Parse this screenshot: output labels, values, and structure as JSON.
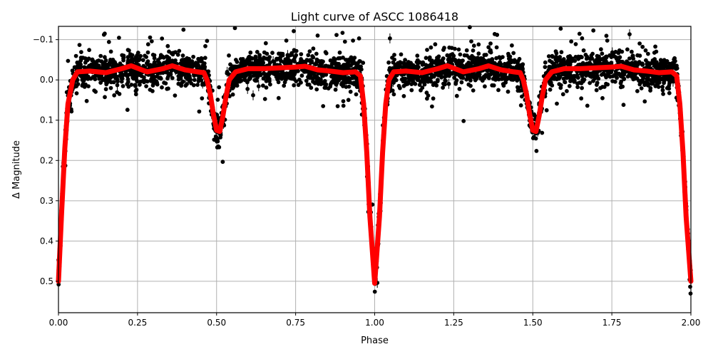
{
  "chart_data": {
    "type": "scatter",
    "title": "Light curve of ASCC 1086418",
    "xlabel": "Phase",
    "ylabel": "Δ Magnitude",
    "xlim": [
      0.0,
      2.0
    ],
    "ylim": [
      0.578,
      -0.133
    ],
    "y_inverted": true,
    "grid": true,
    "legend": null,
    "x_ticks": [
      "0.00",
      "0.25",
      "0.50",
      "0.75",
      "1.00",
      "1.25",
      "1.50",
      "1.75",
      "2.00"
    ],
    "y_ticks": [
      "−0.1",
      "0.0",
      "0.1",
      "0.2",
      "0.3",
      "0.4",
      "0.5"
    ],
    "series": [
      {
        "name": "observations",
        "style": "black points with error bars",
        "color": "#000000",
        "description": "Dense scatter of photometric points following the model curve with ~±0.04 mag scatter; outliers down to about −0.13 and up to about 0.1 out of eclipse"
      },
      {
        "name": "model fit",
        "style": "thick red line",
        "color": "#ff0000",
        "x": [
          0.0,
          0.01,
          0.02,
          0.03,
          0.045,
          0.06,
          0.1,
          0.15,
          0.2,
          0.23,
          0.28,
          0.33,
          0.36,
          0.4,
          0.44,
          0.46,
          0.47,
          0.48,
          0.49,
          0.5,
          0.51,
          0.52,
          0.53,
          0.54,
          0.56,
          0.6,
          0.65,
          0.7,
          0.75,
          0.78,
          0.82,
          0.86,
          0.9,
          0.94,
          0.955,
          0.965,
          0.975,
          0.985,
          1.0,
          1.015,
          1.025,
          1.035,
          1.045,
          1.06,
          1.1,
          1.15,
          1.2,
          1.23,
          1.28,
          1.33,
          1.36,
          1.4,
          1.44,
          1.46,
          1.47,
          1.48,
          1.49,
          1.5,
          1.51,
          1.52,
          1.53,
          1.54,
          1.56,
          1.6,
          1.65,
          1.7,
          1.75,
          1.78,
          1.82,
          1.86,
          1.9,
          1.94,
          1.955,
          1.965,
          1.975,
          1.985,
          2.0
        ],
        "y": [
          0.5,
          0.33,
          0.17,
          0.06,
          0.0,
          -0.02,
          -0.022,
          -0.018,
          -0.028,
          -0.035,
          -0.02,
          -0.028,
          -0.035,
          -0.025,
          -0.02,
          -0.018,
          0.0,
          0.035,
          0.085,
          0.125,
          0.128,
          0.09,
          0.04,
          0.0,
          -0.02,
          -0.028,
          -0.028,
          -0.03,
          -0.032,
          -0.034,
          -0.025,
          -0.022,
          -0.018,
          -0.02,
          -0.01,
          0.06,
          0.18,
          0.34,
          0.505,
          0.34,
          0.18,
          0.06,
          0.0,
          -0.02,
          -0.022,
          -0.018,
          -0.028,
          -0.035,
          -0.02,
          -0.028,
          -0.035,
          -0.025,
          -0.02,
          -0.018,
          0.0,
          0.035,
          0.085,
          0.125,
          0.128,
          0.09,
          0.04,
          0.0,
          -0.02,
          -0.028,
          -0.028,
          -0.03,
          -0.032,
          -0.034,
          -0.025,
          -0.022,
          -0.018,
          -0.02,
          -0.01,
          0.06,
          0.18,
          0.34,
          0.5
        ]
      }
    ],
    "annotations": {
      "primary_eclipse_depth": 0.505,
      "primary_eclipse_phase": [
        0.0,
        1.0,
        2.0
      ],
      "secondary_eclipse_depth": 0.128,
      "secondary_eclipse_phase": [
        0.5,
        1.5
      ]
    }
  }
}
